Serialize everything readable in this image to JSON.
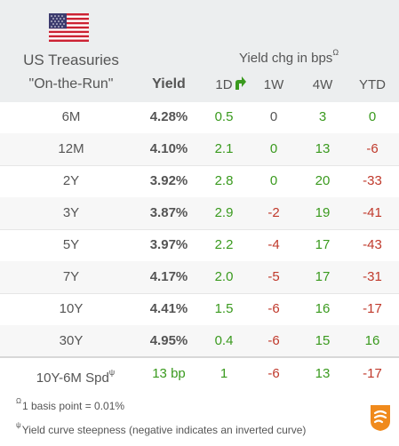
{
  "header": {
    "title_line1": "US Treasuries",
    "title_line2": "\"On-the-Run\"",
    "yield_label": "Yield",
    "yield_chg_label": "Yield chg in bps",
    "yield_chg_marker": "Ω",
    "columns": [
      "1D",
      "1W",
      "4W",
      "YTD"
    ]
  },
  "rows": [
    {
      "tenor": "6M",
      "yield": "4.28%",
      "d1": "0.5",
      "w1": "0",
      "w4": "3",
      "ytd": "0"
    },
    {
      "tenor": "12M",
      "yield": "4.10%",
      "d1": "2.1",
      "w1": "0",
      "w4": "13",
      "ytd": "-6"
    },
    {
      "tenor": "2Y",
      "yield": "3.92%",
      "d1": "2.8",
      "w1": "0",
      "w4": "20",
      "ytd": "-33"
    },
    {
      "tenor": "3Y",
      "yield": "3.87%",
      "d1": "2.9",
      "w1": "-2",
      "w4": "19",
      "ytd": "-41"
    },
    {
      "tenor": "5Y",
      "yield": "3.97%",
      "d1": "2.2",
      "w1": "-4",
      "w4": "17",
      "ytd": "-43"
    },
    {
      "tenor": "7Y",
      "yield": "4.17%",
      "d1": "2.0",
      "w1": "-5",
      "w4": "17",
      "ytd": "-31"
    },
    {
      "tenor": "10Y",
      "yield": "4.41%",
      "d1": "1.5",
      "w1": "-6",
      "w4": "16",
      "ytd": "-17"
    },
    {
      "tenor": "30Y",
      "yield": "4.95%",
      "d1": "0.4",
      "w1": "-6",
      "w4": "15",
      "ytd": "16"
    }
  ],
  "spread": {
    "label": "10Y-6M Spd",
    "marker": "ψ",
    "value": "13 bp",
    "d1": "1",
    "w1": "-6",
    "w4": "13",
    "ytd": "-17"
  },
  "footnotes": {
    "note1_marker": "Ω",
    "note1": "1 basis point = 0.01%",
    "note2_marker": "ψ",
    "note2": "Yield curve steepness (negative indicates an inverted curve)"
  },
  "icons": {
    "flag": "us-flag-icon",
    "sort": "green-arrow-icon",
    "logo": "brand-logo-icon"
  },
  "colors": {
    "positive": "#3a9a1e",
    "negative": "#c0392b",
    "neutral": "#555555",
    "header_bg": "#eceeef",
    "logo": "#f08a1c"
  }
}
